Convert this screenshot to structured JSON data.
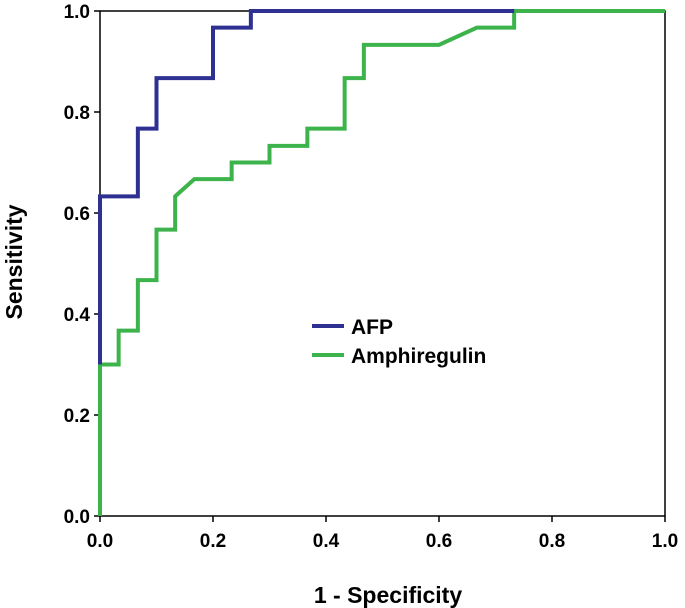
{
  "chart_data": {
    "type": "line",
    "title": "",
    "xlabel": "1 - Specificity",
    "ylabel": "Sensitivity",
    "xlim": [
      0.0,
      1.0
    ],
    "ylim": [
      0.0,
      1.0
    ],
    "xticks": [
      "0.0",
      "0.2",
      "0.4",
      "0.6",
      "0.8",
      "1.0"
    ],
    "yticks": [
      "0.0",
      "0.2",
      "0.4",
      "0.6",
      "0.8",
      "1.0"
    ],
    "grid": false,
    "legend_position": "center",
    "series": [
      {
        "name": "AFP",
        "color": "#2e3192",
        "x": [
          0.0,
          0.0,
          0.067,
          0.067,
          0.1,
          0.1,
          0.2,
          0.2,
          0.267,
          0.267,
          0.733
        ],
        "y": [
          0.3,
          0.633,
          0.633,
          0.767,
          0.767,
          0.867,
          0.867,
          0.967,
          0.967,
          1.0,
          1.0
        ]
      },
      {
        "name": "Amphiregulin",
        "color": "#3cb44b",
        "x": [
          0.0,
          0.0,
          0.033,
          0.033,
          0.067,
          0.067,
          0.1,
          0.1,
          0.133,
          0.133,
          0.167,
          0.233,
          0.233,
          0.3,
          0.3,
          0.367,
          0.367,
          0.433,
          0.433,
          0.467,
          0.467,
          0.6,
          0.667,
          0.733,
          0.733,
          1.0
        ],
        "y": [
          0.0,
          0.3,
          0.3,
          0.367,
          0.367,
          0.467,
          0.467,
          0.567,
          0.567,
          0.633,
          0.667,
          0.667,
          0.7,
          0.7,
          0.733,
          0.733,
          0.767,
          0.767,
          0.867,
          0.867,
          0.933,
          0.933,
          0.967,
          0.967,
          1.0,
          1.0
        ]
      }
    ]
  }
}
